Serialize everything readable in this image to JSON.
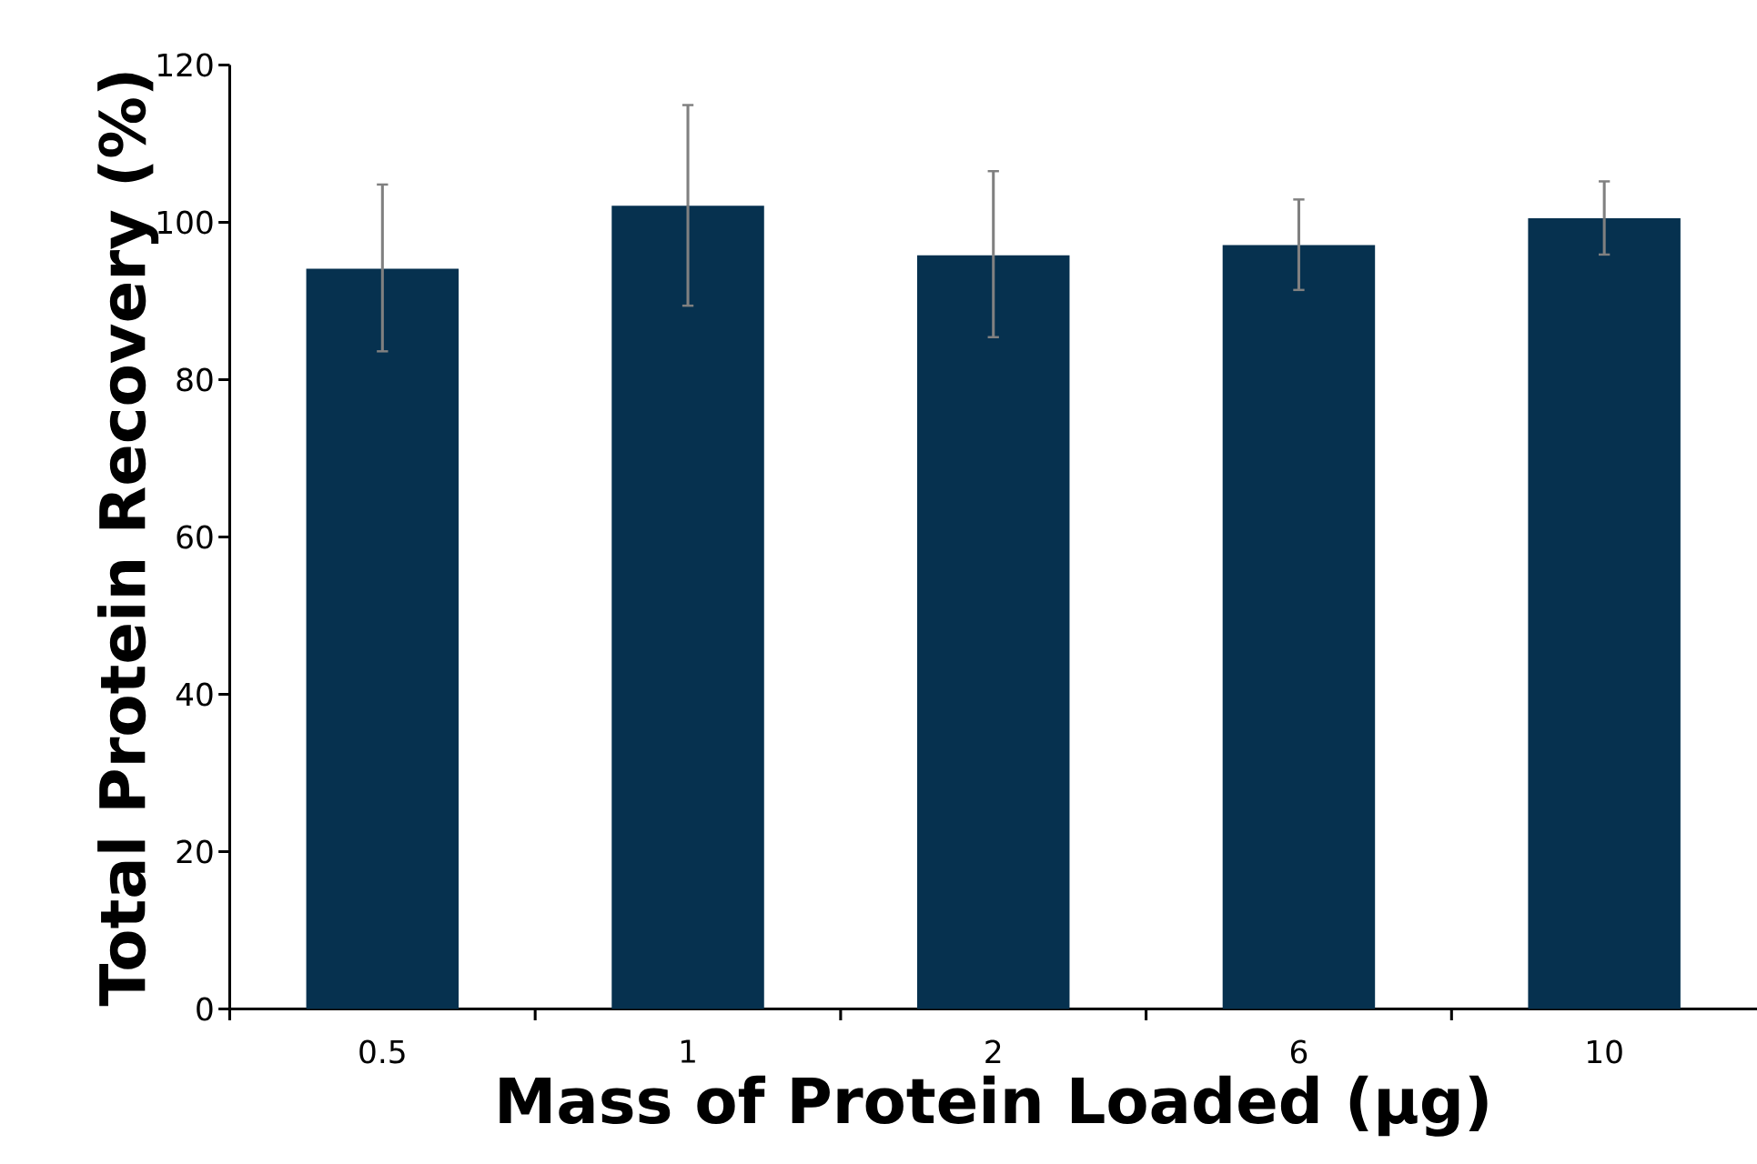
{
  "chart_data": {
    "type": "bar",
    "xlabel": "Mass of Protein Loaded (µg)",
    "ylabel": "Total Protein Recovery (%)",
    "categories": [
      "0.5",
      "1",
      "2",
      "6",
      "10"
    ],
    "values": [
      94.1,
      102.1,
      95.8,
      97.1,
      100.5
    ],
    "errors": [
      [
        83.6,
        104.8
      ],
      [
        89.4,
        114.9
      ],
      [
        85.4,
        106.5
      ],
      [
        91.4,
        102.9
      ],
      [
        95.9,
        105.2
      ]
    ],
    "color": "#06314f",
    "ylim": [
      0,
      120
    ],
    "yticks": [
      0,
      20,
      40,
      60,
      80,
      100,
      120
    ],
    "grid": false
  }
}
